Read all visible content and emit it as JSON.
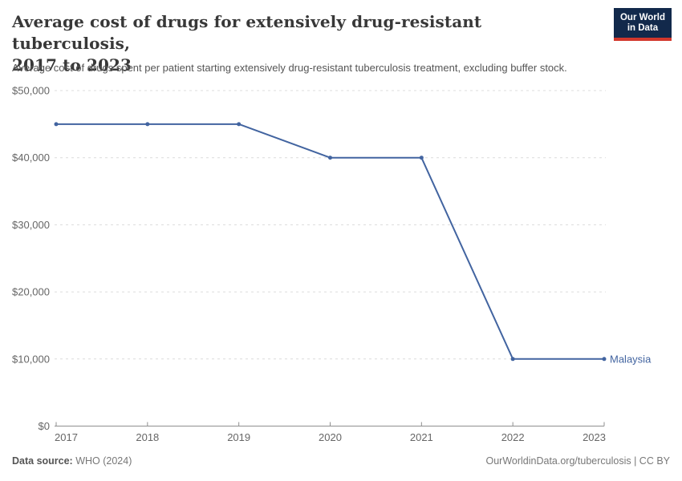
{
  "header": {
    "title_line1": "Average cost of drugs for extensively drug-resistant tuberculosis,",
    "title_line2": "2017 to 2023",
    "subtitle": "Average cost of drugs spent per patient starting extensively drug-resistant tuberculosis treatment, excluding buffer stock.",
    "logo_line1": "Our World",
    "logo_line2": "in Data"
  },
  "chart_data": {
    "type": "line",
    "title": "Average cost of drugs for extensively drug-resistant tuberculosis, 2017 to 2023",
    "x": [
      2017,
      2018,
      2019,
      2020,
      2021,
      2022,
      2023
    ],
    "series": [
      {
        "name": "Malaysia",
        "values": [
          45000,
          45000,
          45000,
          40000,
          40000,
          10000,
          10000
        ],
        "color": "#4264a0"
      }
    ],
    "ylim": [
      0,
      50000
    ],
    "yticks": [
      0,
      10000,
      20000,
      30000,
      40000,
      50000
    ],
    "ytick_labels": [
      "$0",
      "$10,000",
      "$20,000",
      "$30,000",
      "$40,000",
      "$50,000"
    ],
    "xlabel": "",
    "ylabel": "",
    "grid": "horizontal-dashed",
    "legend_position": "end-of-line-label"
  },
  "footer": {
    "source_label": "Data source:",
    "source_value": "WHO (2024)",
    "attribution": "OurWorldinData.org/tuberculosis | CC BY"
  },
  "colors": {
    "line": "#4264a0",
    "grid": "#dcdcdc",
    "axis": "#8f8f8f",
    "tick_label": "#666666",
    "entity_label": "#4264a0",
    "logo_bg": "#12294b",
    "logo_accent": "#d2372c"
  }
}
